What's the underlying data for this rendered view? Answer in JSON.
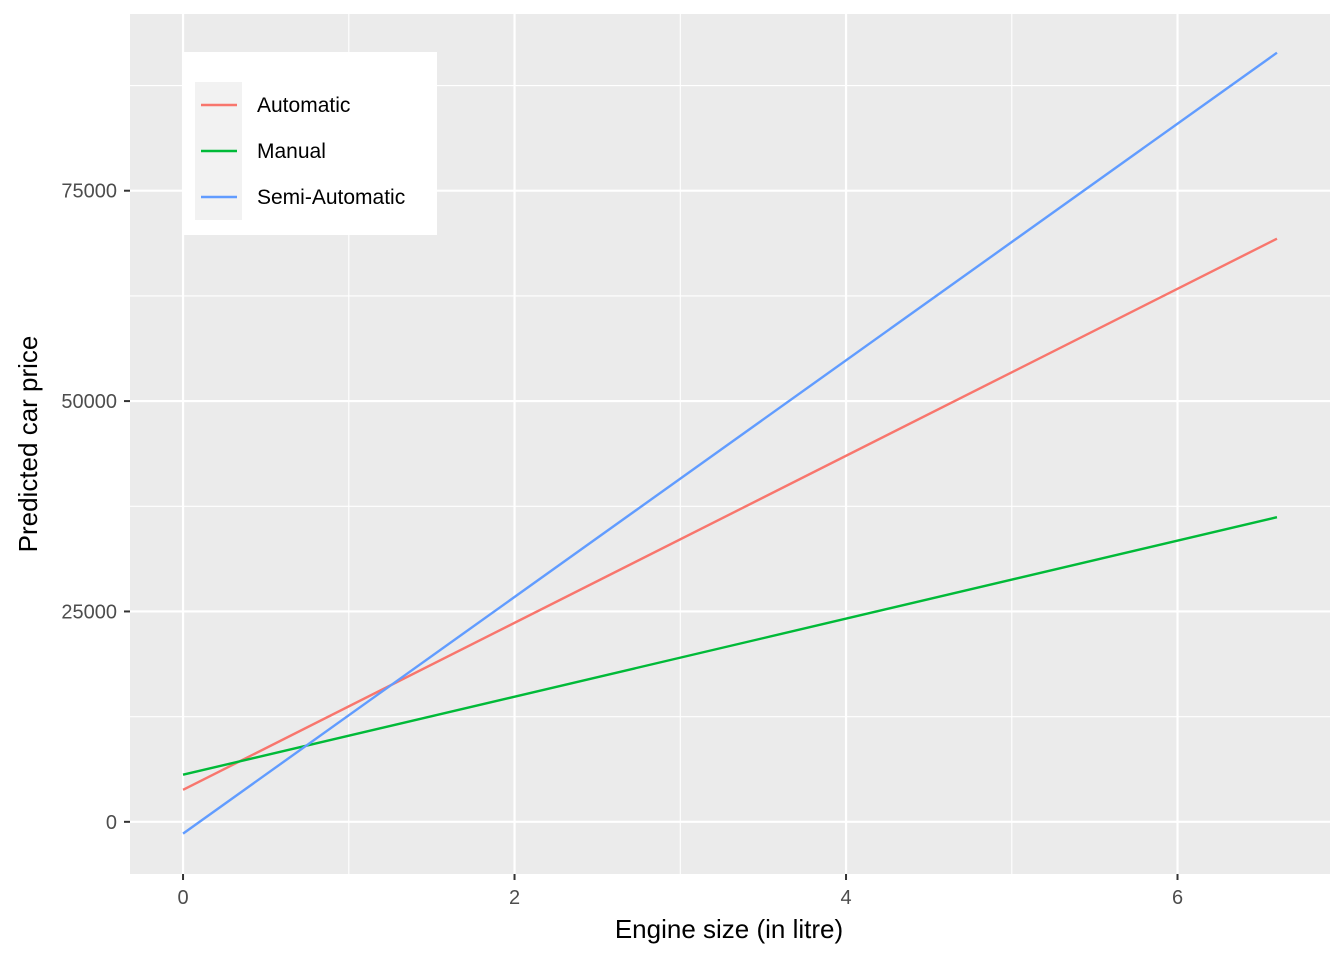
{
  "chart_data": {
    "type": "line",
    "title": "",
    "xlabel": "Engine size (in litre)",
    "ylabel": "Predicted car price",
    "xlim": [
      -0.32,
      6.92
    ],
    "ylim": [
      -6200,
      96000
    ],
    "x_ticks": [
      0,
      2,
      4,
      6
    ],
    "x_tick_labels": [
      "0",
      "2",
      "4",
      "6"
    ],
    "y_ticks": [
      0,
      25000,
      50000,
      75000
    ],
    "y_tick_labels": [
      "0",
      "25000",
      "50000",
      "75000"
    ],
    "grid": true,
    "background": "#EBEBEB",
    "legend": {
      "placement": "top-left, inside plot"
    },
    "series": [
      {
        "name": "Automatic",
        "color": "#F8766D",
        "x": [
          0,
          6.6
        ],
        "y": [
          3800,
          69300
        ]
      },
      {
        "name": "Manual",
        "color": "#00BA38",
        "x": [
          0,
          6.6
        ],
        "y": [
          5600,
          36200
        ]
      },
      {
        "name": "Semi-Automatic",
        "color": "#619CFF",
        "x": [
          0,
          6.6
        ],
        "y": [
          -1400,
          91400
        ]
      }
    ]
  }
}
